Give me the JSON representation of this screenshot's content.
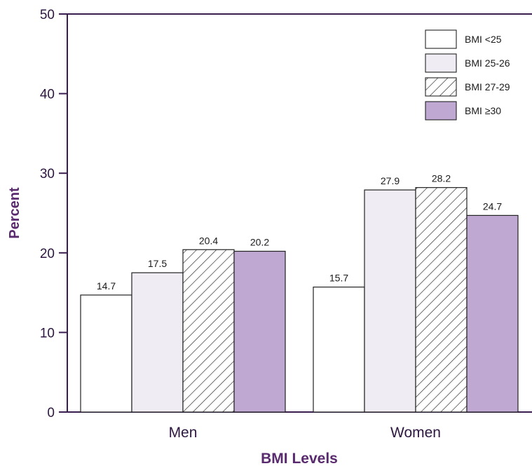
{
  "chart_data": {
    "type": "bar",
    "categories": [
      "Men",
      "Women"
    ],
    "series": [
      {
        "name": "BMI <25",
        "values": [
          14.7,
          15.7
        ],
        "pattern": "solid",
        "color": "#ffffff"
      },
      {
        "name": "BMI 25-26",
        "values": [
          17.5,
          27.9
        ],
        "pattern": "solid",
        "color": "#efedf3"
      },
      {
        "name": "BMI 27-29",
        "values": [
          20.4,
          28.2
        ],
        "pattern": "hatch",
        "color": "#ffffff"
      },
      {
        "name": "BMI ≥30",
        "values": [
          20.2,
          24.7
        ],
        "pattern": "solid",
        "color": "#bfa8d2"
      }
    ],
    "xlabel": "BMI Levels",
    "ylabel": "Percent",
    "ylim": [
      0,
      50
    ],
    "yticks": [
      "0",
      "10",
      "20",
      "30",
      "40",
      "50"
    ],
    "grid": false,
    "legend_position": "top-right",
    "axis_color": "#3a1e4f",
    "title_color": "#5a2a6e"
  }
}
